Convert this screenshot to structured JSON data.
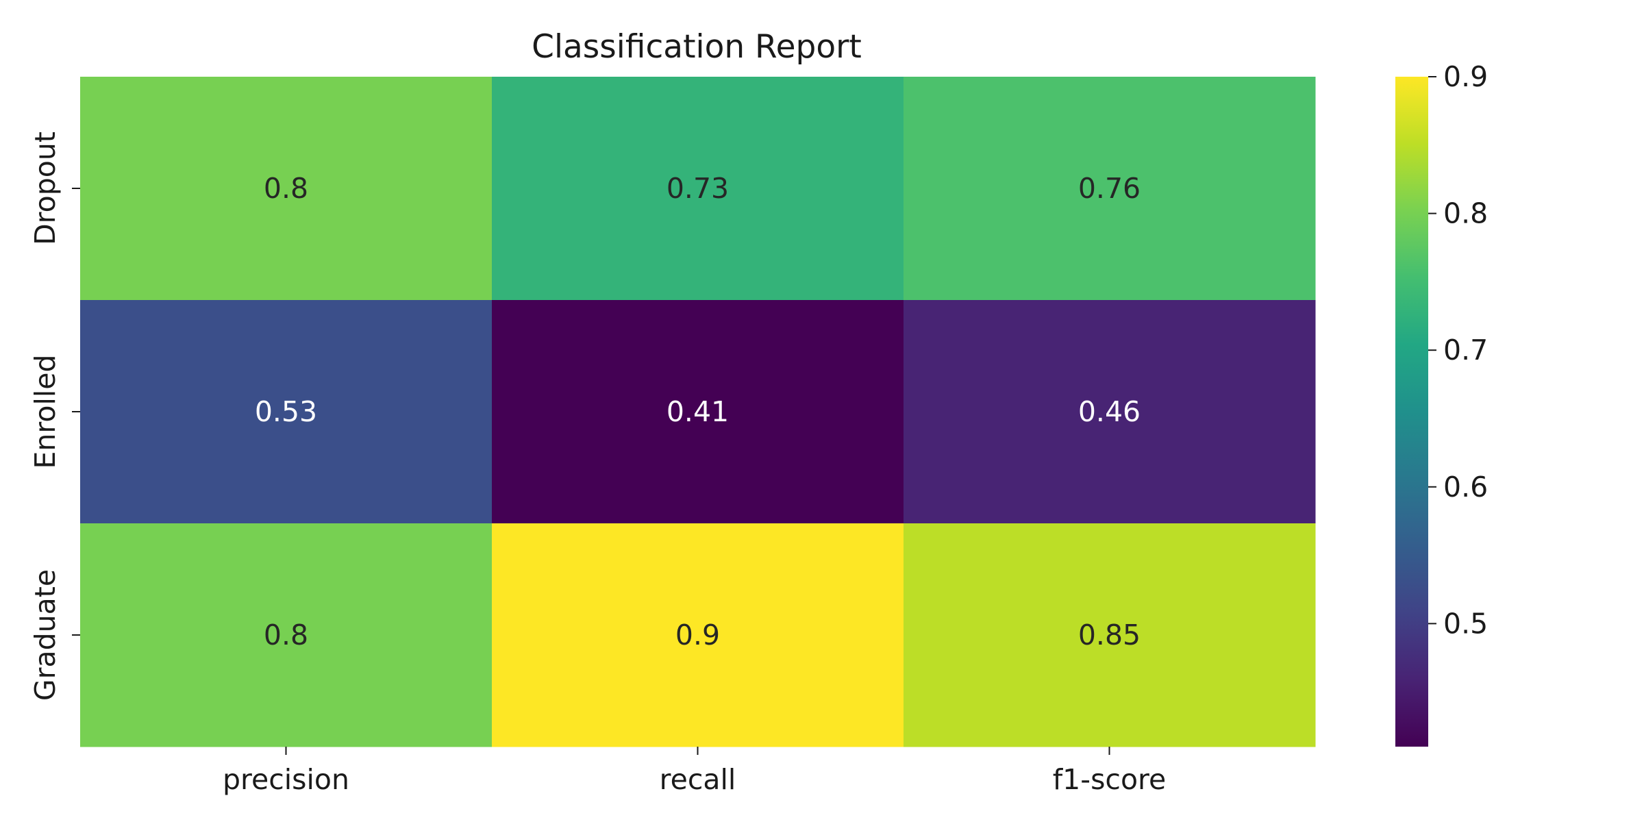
{
  "chart_data": {
    "type": "heatmap",
    "title": "Classification Report",
    "xlabel": "",
    "ylabel": "",
    "columns": [
      "precision",
      "recall",
      "f1-score"
    ],
    "rows": [
      "Dropout",
      "Enrolled",
      "Graduate"
    ],
    "values": [
      [
        0.8,
        0.73,
        0.76
      ],
      [
        0.53,
        0.41,
        0.46
      ],
      [
        0.8,
        0.9,
        0.85
      ]
    ],
    "value_labels": [
      [
        "0.8",
        "0.73",
        "0.76"
      ],
      [
        "0.53",
        "0.41",
        "0.46"
      ],
      [
        "0.8",
        "0.9",
        "0.85"
      ]
    ],
    "colormap": "viridis",
    "colorbar": {
      "range": [
        0.41,
        0.9
      ],
      "ticks": [
        0.5,
        0.6,
        0.7,
        0.8,
        0.9
      ],
      "tick_labels": [
        "0.5",
        "0.6",
        "0.7",
        "0.8",
        "0.9"
      ]
    },
    "grid": false,
    "legend": "colorbar-right"
  }
}
